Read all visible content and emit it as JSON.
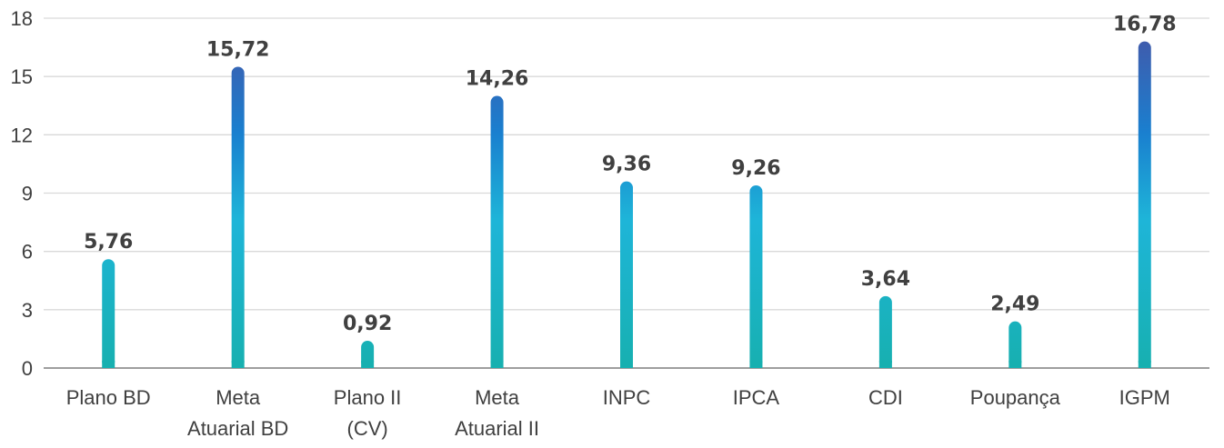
{
  "chart_data": {
    "type": "bar",
    "categories": [
      [
        "Plano BD"
      ],
      [
        "Meta",
        "Atuarial BD"
      ],
      [
        "Plano II",
        "(CV)"
      ],
      [
        "Meta",
        "Atuarial II"
      ],
      [
        "INPC"
      ],
      [
        "IPCA"
      ],
      [
        "CDI"
      ],
      [
        "Poupança"
      ],
      [
        "IGPM"
      ]
    ],
    "values": [
      5.76,
      15.72,
      0.92,
      14.26,
      9.36,
      9.26,
      3.64,
      2.49,
      16.78
    ],
    "data_labels": [
      "5,76",
      "15,72",
      "0,92",
      "14,26",
      "9,36",
      "9,26",
      "3,64",
      "2,49",
      "16,78"
    ],
    "bar_heights": [
      5.6,
      15.5,
      1.4,
      14.0,
      9.6,
      9.4,
      3.7,
      2.4,
      16.8
    ],
    "yticks": [
      0,
      3,
      6,
      9,
      12,
      15,
      18
    ],
    "ylim": [
      0,
      18
    ],
    "grid": true,
    "legend": "none",
    "colors": {
      "bar_bottom": "#17B0B0",
      "bar_mid": "#1EB5D8",
      "bar_upper": "#1A7FCF",
      "bar_top": "#3F5CAD",
      "grid": "#D9D9D9",
      "axis": "#7F7F7F",
      "text": "#404040"
    }
  }
}
